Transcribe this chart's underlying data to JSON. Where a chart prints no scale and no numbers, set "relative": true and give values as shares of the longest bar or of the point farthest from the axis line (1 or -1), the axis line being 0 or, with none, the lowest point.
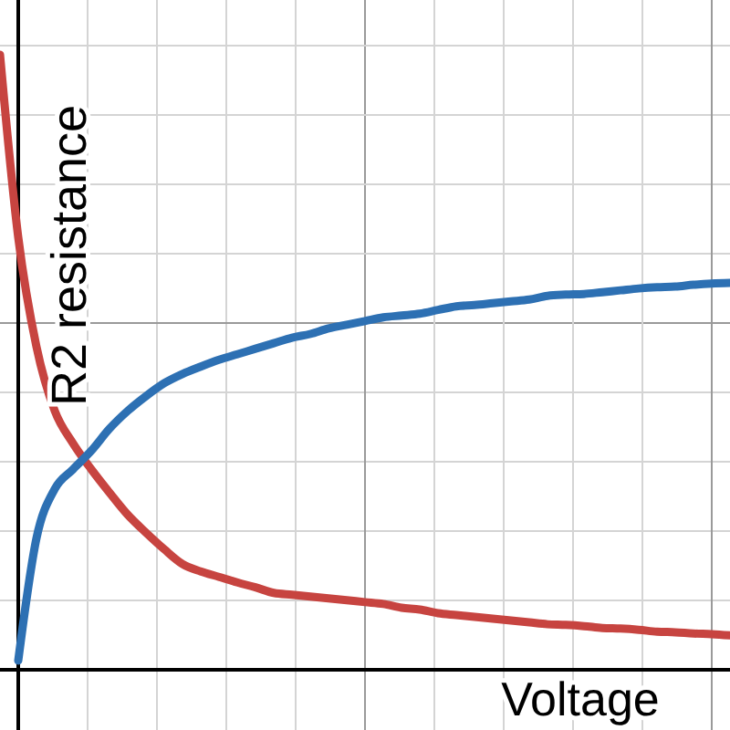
{
  "chart_data": {
    "type": "line",
    "relative": true,
    "xlabel": "Voltage",
    "ylabel": "R2 resistance",
    "grid": true,
    "line_style": "solid",
    "marker": "none",
    "categories": [
      null,
      null,
      null,
      null,
      null,
      null,
      null,
      null,
      null,
      null,
      null,
      null,
      null,
      null,
      null,
      null,
      null,
      null,
      null,
      null,
      null,
      null,
      null,
      null,
      null,
      null,
      null,
      null,
      null,
      null,
      null,
      null,
      null,
      null,
      null,
      null,
      null,
      null,
      null,
      null,
      null
    ],
    "series": [
      {
        "color": "#c74440",
        "values": [
          1,
          0.703,
          0.525,
          0.421,
          0.368,
          0.326,
          0.288,
          0.252,
          0.223,
          0.196,
          0.172,
          0.16,
          0.151,
          0.142,
          0.134,
          0.125,
          0.122,
          0.119,
          0.116,
          0.113,
          0.11,
          0.107,
          0.101,
          0.098,
          0.092,
          0.089,
          0.086,
          0.083,
          0.08,
          0.077,
          0.074,
          0.073,
          0.071,
          0.068,
          0.067,
          0.065,
          0.062,
          0.061,
          0.059,
          0.058,
          0.056
        ]
      },
      {
        "color": "#2d70b3",
        "values": [
          null,
          0.015,
          0.214,
          0.294,
          0.326,
          0.356,
          0.392,
          0.421,
          0.445,
          0.466,
          0.481,
          0.493,
          0.504,
          0.513,
          0.522,
          0.531,
          0.54,
          0.546,
          0.555,
          0.561,
          0.567,
          0.573,
          0.576,
          0.579,
          0.585,
          0.591,
          0.593,
          0.596,
          0.599,
          0.602,
          0.608,
          0.61,
          0.611,
          0.614,
          0.617,
          0.62,
          0.622,
          0.623,
          0.626,
          0.628,
          0.629
        ]
      }
    ]
  }
}
